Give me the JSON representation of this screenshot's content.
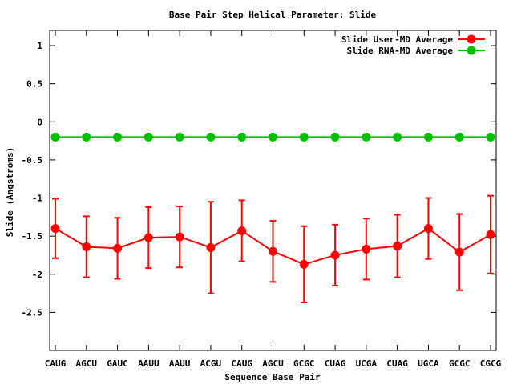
{
  "chart_data": {
    "type": "line",
    "title": "Base Pair Step Helical Parameter: Slide",
    "xlabel": "Sequence Base Pair",
    "ylabel": "Slide (Angstroms)",
    "categories": [
      "CAUG",
      "AGCU",
      "GAUC",
      "AAUU",
      "AAUU",
      "ACGU",
      "CAUG",
      "AGCU",
      "GCGC",
      "CUAG",
      "UCGA",
      "CUAG",
      "UGCA",
      "GCGC",
      "CGCG"
    ],
    "ylim": [
      -3,
      1.2
    ],
    "yticks": [
      1,
      0.5,
      0,
      -0.5,
      -1,
      -1.5,
      -2,
      -2.5
    ],
    "ytick_labels": [
      "1",
      "0.5",
      "0",
      "-0.5",
      "-1",
      "-1.5",
      "-2",
      "-2.5"
    ],
    "grid": false,
    "legend_position": "top-right",
    "series": [
      {
        "name": "Slide User-MD Average",
        "color": "#ff0000",
        "values": [
          -1.4,
          -1.64,
          -1.66,
          -1.52,
          -1.51,
          -1.65,
          -1.43,
          -1.7,
          -1.87,
          -1.75,
          -1.67,
          -1.63,
          -1.4,
          -1.71,
          -1.48
        ],
        "error": [
          0.39,
          0.4,
          0.4,
          0.4,
          0.4,
          0.6,
          0.4,
          0.4,
          0.5,
          0.4,
          0.4,
          0.41,
          0.4,
          0.5,
          0.51
        ]
      },
      {
        "name": "Slide RNA-MD Average",
        "color": "#00c000",
        "values": [
          -0.2,
          -0.2,
          -0.2,
          -0.2,
          -0.2,
          -0.2,
          -0.2,
          -0.2,
          -0.2,
          -0.2,
          -0.2,
          -0.2,
          -0.2,
          -0.2,
          -0.2
        ]
      }
    ]
  }
}
